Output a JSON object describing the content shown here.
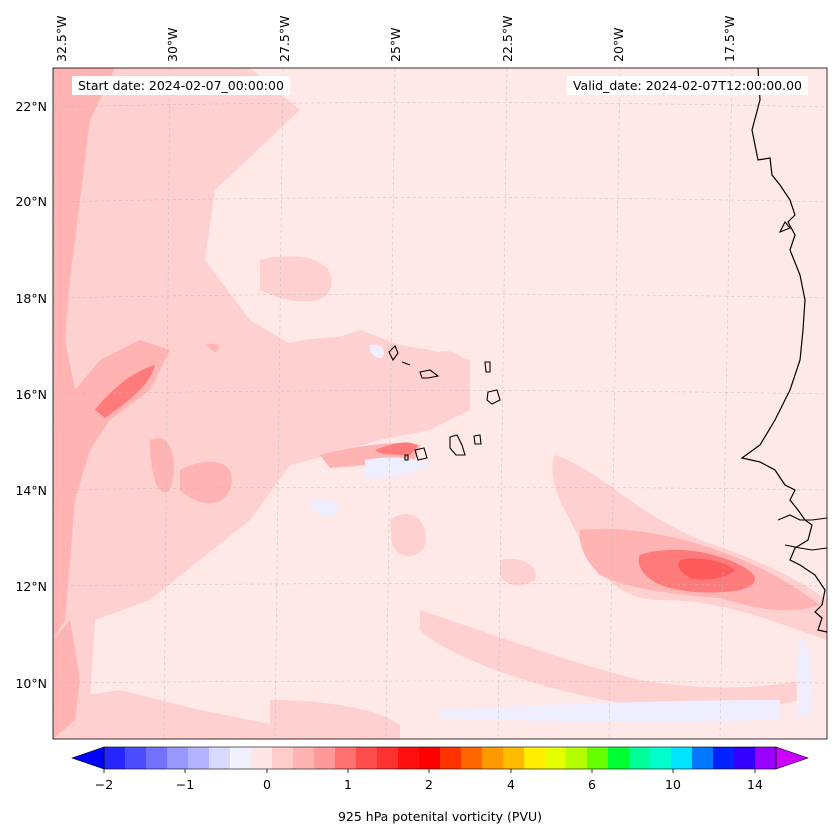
{
  "header": {
    "start_date": "Start date: 2024-02-07_00:00:00",
    "valid_date": "Valid_date: 2024-02-07T12:00:00.00"
  },
  "axes": {
    "lon_labels": [
      "32.5°W",
      "30°W",
      "27.5°W",
      "25°W",
      "22.5°W",
      "20°W",
      "17.5°W"
    ],
    "lat_labels": [
      "22°N",
      "20°N",
      "18°N",
      "16°N",
      "14°N",
      "12°N",
      "10°N"
    ]
  },
  "colorbar": {
    "title": "925 hPa potenital vorticity (PVU)",
    "tick_labels": [
      "−2",
      "−1",
      "0",
      "1",
      "2",
      "4",
      "6",
      "10",
      "14"
    ],
    "colors": [
      "#0000ff",
      "#2626ff",
      "#4c4cff",
      "#7272ff",
      "#9898ff",
      "#b3b3ff",
      "#d9d9ff",
      "#f0f0ff",
      "#ffe6e6",
      "#ffcccc",
      "#ffb3b3",
      "#ff9999",
      "#ff7070",
      "#ff4d4d",
      "#ff3030",
      "#ff1010",
      "#ff0000",
      "#ff3300",
      "#ff6600",
      "#ff9900",
      "#ffbb00",
      "#ffee00",
      "#e6ff00",
      "#b3ff00",
      "#66ff00",
      "#00ff33",
      "#00ff99",
      "#00ffcc",
      "#00e5ff",
      "#0077ff",
      "#0022ff",
      "#3300ff",
      "#9900ff",
      "#cc00ff"
    ]
  },
  "colors": {
    "background_field": "#ffe8e8",
    "light_pv": "#ffd0d0",
    "moderate_pv": "#ffb0b0",
    "strong_pv": "#ff7070",
    "negative_pv": "#eeeeff",
    "coastline": "#000000"
  }
}
